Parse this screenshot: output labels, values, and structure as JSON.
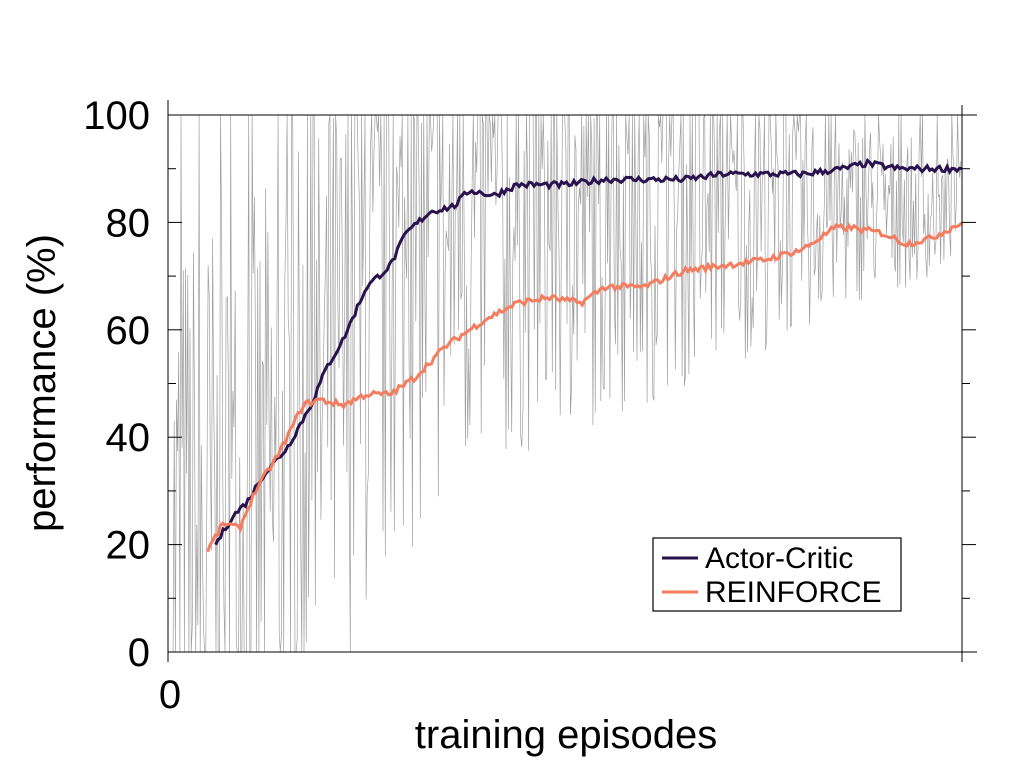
{
  "chart_data": {
    "type": "line",
    "title": "",
    "xlabel": "training episodes",
    "ylabel": "performance (%)",
    "ylim": [
      0,
      100
    ],
    "y_ticks": [
      0,
      20,
      40,
      60,
      80,
      100
    ],
    "x_tick_labels": [
      "0"
    ],
    "xlim": [
      0,
      1
    ],
    "grid": false,
    "legend_placement": "bottom-right",
    "raw_episodes": {
      "name": "",
      "color": "#a0a0a0",
      "description_values": "individual episode performance, noisy between 0 and 100"
    },
    "series": [
      {
        "name": "Actor-Critic",
        "color": "#2a124f",
        "x": [
          0.06,
          0.08,
          0.1,
          0.12,
          0.15,
          0.18,
          0.2,
          0.22,
          0.25,
          0.28,
          0.3,
          0.33,
          0.36,
          0.38,
          0.41,
          0.44,
          0.47,
          0.5,
          0.55,
          0.6,
          0.65,
          0.7,
          0.75,
          0.8,
          0.85,
          0.88,
          0.92,
          0.96,
          1.0
        ],
        "y": [
          20,
          25,
          28,
          33,
          38,
          46,
          53,
          58,
          68,
          72,
          78,
          82,
          83,
          86,
          85,
          87,
          87,
          87,
          88,
          88,
          88,
          89,
          89,
          89,
          90,
          91,
          90,
          90,
          90
        ]
      },
      {
        "name": "REINFORCE",
        "color": "#f47c5f",
        "x": [
          0.05,
          0.07,
          0.09,
          0.11,
          0.14,
          0.17,
          0.19,
          0.22,
          0.25,
          0.28,
          0.31,
          0.35,
          0.4,
          0.44,
          0.48,
          0.52,
          0.55,
          0.6,
          0.65,
          0.7,
          0.75,
          0.8,
          0.84,
          0.86,
          0.9,
          0.93,
          0.96,
          1.0
        ],
        "y": [
          19,
          24,
          23,
          30,
          37,
          46,
          47,
          46,
          48,
          48,
          51,
          57,
          62,
          65,
          66,
          65,
          68,
          68,
          71,
          72,
          73,
          75,
          79,
          79,
          78,
          76,
          77,
          80
        ]
      }
    ]
  }
}
